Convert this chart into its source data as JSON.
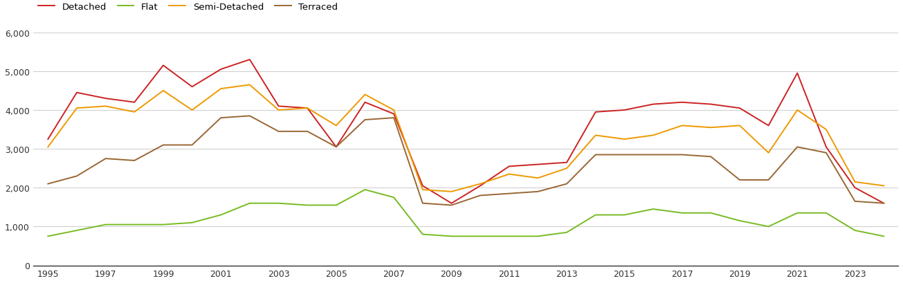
{
  "years": [
    1995,
    1996,
    1997,
    1998,
    1999,
    2000,
    2001,
    2002,
    2003,
    2004,
    2005,
    2006,
    2007,
    2008,
    2009,
    2010,
    2011,
    2012,
    2013,
    2014,
    2015,
    2016,
    2017,
    2018,
    2019,
    2020,
    2021,
    2022,
    2023,
    2024
  ],
  "detached": [
    3250,
    4450,
    4300,
    4200,
    5150,
    4600,
    5050,
    5300,
    4100,
    4050,
    3050,
    4200,
    3900,
    2050,
    1600,
    2050,
    2550,
    2600,
    2650,
    3950,
    4000,
    4150,
    4200,
    4150,
    4050,
    3600,
    4950,
    3050,
    2000,
    1600
  ],
  "flat": [
    750,
    900,
    1050,
    1050,
    1050,
    1100,
    1300,
    1600,
    1600,
    1550,
    1550,
    1950,
    1750,
    800,
    750,
    750,
    750,
    750,
    850,
    1300,
    1300,
    1450,
    1350,
    1350,
    1150,
    1000,
    1350,
    1350,
    900,
    750
  ],
  "semi_detached": [
    3050,
    4050,
    4100,
    3950,
    4500,
    4000,
    4550,
    4650,
    4000,
    4050,
    3600,
    4400,
    4000,
    1950,
    1900,
    2100,
    2350,
    2250,
    2500,
    3350,
    3250,
    3350,
    3600,
    3550,
    3600,
    2900,
    4000,
    3500,
    2150,
    2050
  ],
  "terraced": [
    2100,
    2300,
    2750,
    2700,
    3100,
    3100,
    3800,
    3850,
    3450,
    3450,
    3050,
    3750,
    3800,
    1600,
    1550,
    1800,
    1850,
    1900,
    2100,
    2850,
    2850,
    2850,
    2850,
    2800,
    2200,
    2200,
    3050,
    2900,
    1650,
    1600
  ],
  "colors": {
    "detached": "#cc2222",
    "flat": "#77bb22",
    "semi_detached": "#ee9900",
    "terraced": "#996633"
  },
  "ylim": [
    0,
    6000
  ],
  "yticks": [
    0,
    1000,
    2000,
    3000,
    4000,
    5000,
    6000
  ],
  "xtick_years": [
    1995,
    1997,
    1999,
    2001,
    2003,
    2005,
    2007,
    2009,
    2011,
    2013,
    2015,
    2017,
    2019,
    2021,
    2023
  ],
  "xlim_left": 1994.5,
  "xlim_right": 2024.5,
  "background_color": "#ffffff",
  "grid_color": "#d0d0d0"
}
